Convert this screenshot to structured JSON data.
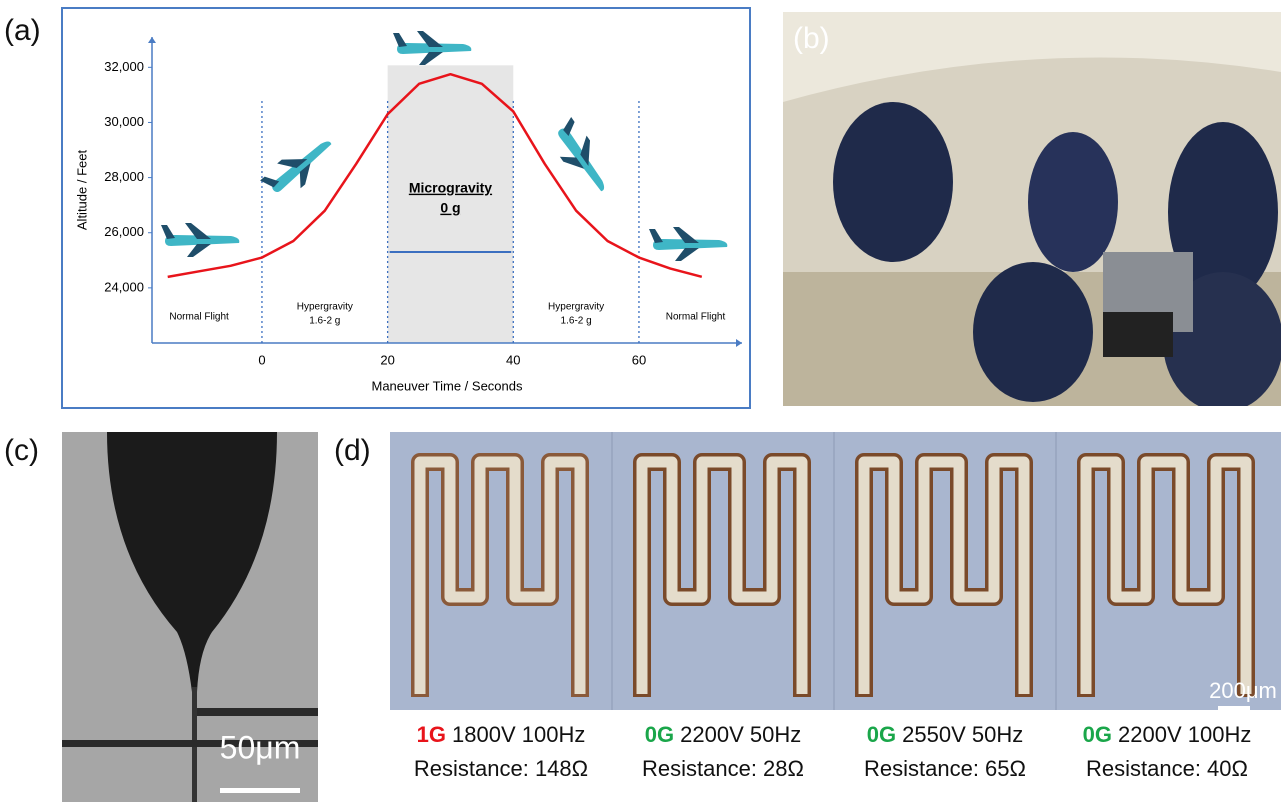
{
  "chart_data": {
    "type": "line",
    "x_label": "Maneuver Time / Seconds",
    "y_label": "Altitude / Feet",
    "x": [
      -15,
      -10,
      -5,
      0,
      5,
      10,
      15,
      20,
      25,
      30,
      35,
      40,
      45,
      50,
      55,
      60,
      65,
      70
    ],
    "series": [
      {
        "color": "#e8141b",
        "values": [
          24400,
          24600,
          24800,
          25100,
          25700,
          26800,
          28500,
          30300,
          31400,
          31750,
          31400,
          30400,
          28500,
          26800,
          25700,
          25100,
          24700,
          24400
        ]
      }
    ],
    "xlim": [
      -17.5,
      76.4
    ],
    "ylim": [
      22000,
      33100
    ],
    "xticks": [
      0,
      20,
      40,
      60
    ],
    "yticks": [
      {
        "value": 24000,
        "label": "24,000"
      },
      {
        "value": 26000,
        "label": "26,000"
      },
      {
        "value": 28000,
        "label": "28,000"
      },
      {
        "value": 30000,
        "label": "30,000"
      },
      {
        "value": 32000,
        "label": "32,000"
      }
    ],
    "highlight": [
      20,
      40
    ],
    "annotations": [
      "Normal Flight",
      "Hypergravity",
      "1.6-2 g",
      "Microgravity",
      "0 g",
      "Hypergravity",
      "1.6-2 g",
      "Normal Flight"
    ]
  },
  "panel_labels": [
    "(a)",
    "(b)",
    "(c)",
    "(d)"
  ],
  "panel_c": {
    "scale_bar": "50μm"
  },
  "panel_d": {
    "scale_bar": "200μm",
    "images": [
      {
        "gravity": "1G",
        "gravity_color": "#e8141b",
        "settings": "1800V 100Hz",
        "resistance": "Resistance: 148Ω"
      },
      {
        "gravity": "0G",
        "gravity_color": "#1aa64a",
        "settings": "2200V 50Hz",
        "resistance": "Resistance: 28Ω"
      },
      {
        "gravity": "0G",
        "gravity_color": "#1aa64a",
        "settings": "2550V 50Hz",
        "resistance": "Resistance: 65Ω"
      },
      {
        "gravity": "0G",
        "gravity_color": "#1aa64a",
        "settings": "2200V 100Hz",
        "resistance": "Resistance: 40Ω"
      }
    ]
  }
}
